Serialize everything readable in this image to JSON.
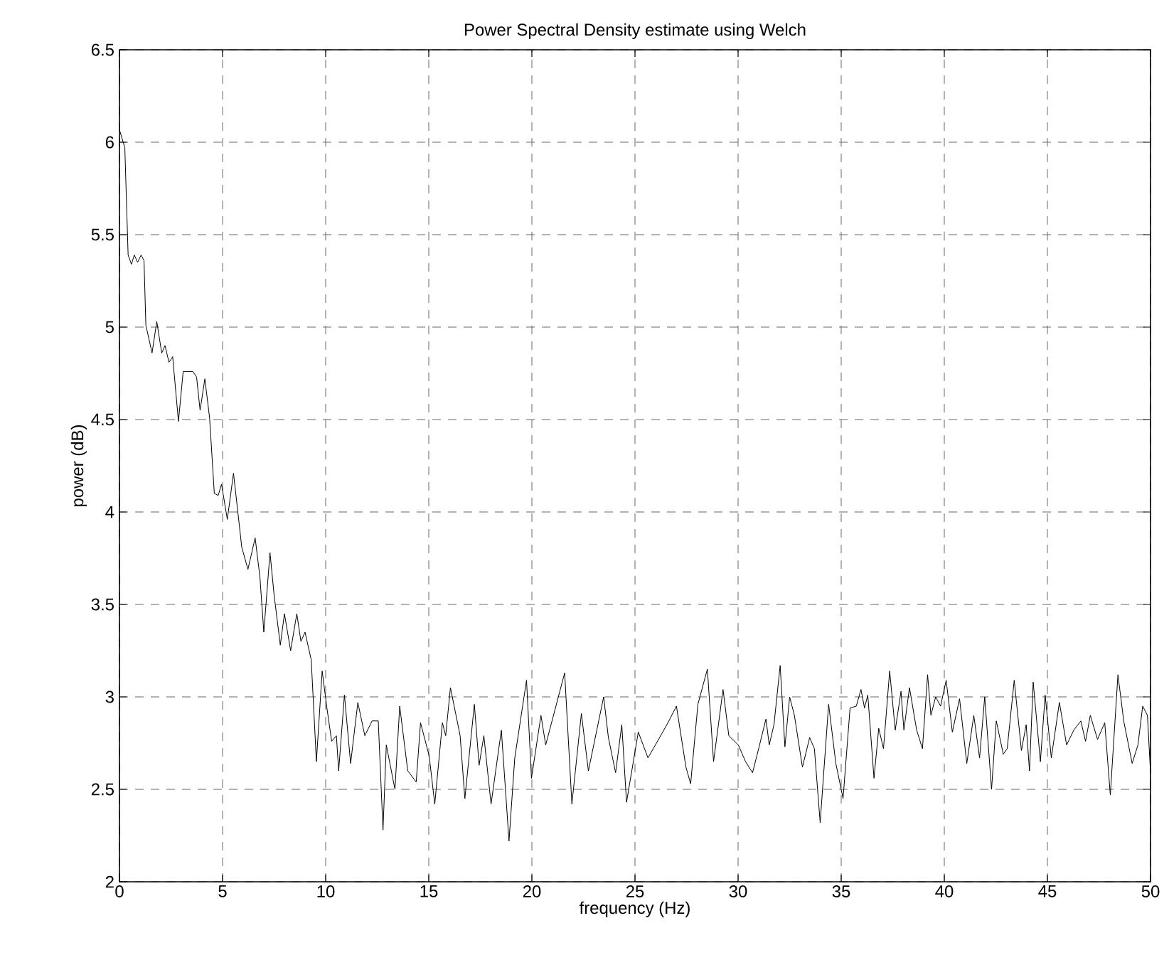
{
  "chart_data": {
    "type": "line",
    "title": "Power Spectral Density estimate using Welch",
    "xlabel": "frequency (Hz)",
    "ylabel": "power (dB)",
    "color": "#000000",
    "grid": true,
    "xlim": [
      0,
      50
    ],
    "ylim": [
      2,
      6.5
    ],
    "xticks": [
      0,
      5,
      10,
      15,
      20,
      25,
      30,
      35,
      40,
      45,
      50
    ],
    "yticks": [
      2,
      2.5,
      3,
      3.5,
      4,
      4.5,
      5,
      5.5,
      6,
      6.5
    ],
    "x": [
      0.02,
      0.26,
      0.42,
      0.58,
      0.72,
      0.88,
      1.05,
      1.19,
      1.28,
      1.58,
      1.81,
      2.05,
      2.21,
      2.4,
      2.58,
      2.86,
      3.09,
      3.56,
      3.74,
      3.91,
      4.14,
      4.37,
      4.6,
      4.79,
      4.95,
      5.23,
      5.53,
      5.93,
      6.23,
      6.58,
      6.81,
      7.0,
      7.3,
      7.5,
      7.8,
      8.0,
      8.3,
      8.6,
      8.8,
      9.0,
      9.3,
      9.55,
      9.83,
      10.06,
      10.29,
      10.52,
      10.63,
      10.91,
      11.21,
      11.56,
      11.9,
      12.25,
      12.55,
      12.78,
      12.94,
      13.36,
      13.59,
      13.98,
      14.39,
      14.6,
      15.02,
      15.29,
      15.66,
      15.82,
      16.05,
      16.52,
      16.75,
      17.21,
      17.44,
      17.67,
      18.02,
      18.52,
      18.89,
      19.17,
      19.74,
      19.98,
      20.44,
      20.67,
      21.59,
      21.94,
      22.4,
      22.74,
      23.48,
      23.71,
      24.06,
      24.36,
      24.59,
      25.16,
      25.63,
      26.55,
      27.01,
      27.47,
      27.7,
      28.05,
      28.51,
      28.81,
      29.27,
      29.55,
      30.01,
      30.36,
      30.7,
      30.93,
      31.35,
      31.51,
      31.74,
      32.04,
      32.27,
      32.5,
      32.73,
      33.12,
      33.47,
      33.7,
      33.98,
      34.39,
      34.74,
      35.09,
      35.43,
      35.73,
      35.96,
      36.13,
      36.29,
      36.59,
      36.82,
      37.05,
      37.35,
      37.62,
      37.9,
      38.04,
      38.31,
      38.66,
      38.94,
      39.19,
      39.35,
      39.58,
      39.82,
      40.09,
      40.39,
      40.74,
      41.09,
      41.43,
      41.71,
      41.96,
      42.29,
      42.52,
      42.86,
      43.05,
      43.39,
      43.74,
      43.97,
      44.13,
      44.31,
      44.66,
      44.89,
      45.19,
      45.58,
      45.93,
      46.28,
      46.62,
      46.85,
      47.08,
      47.43,
      47.78,
      48.05,
      48.42,
      48.7,
      49.11,
      49.39,
      49.62,
      49.85,
      50
    ],
    "values": [
      6.06,
      5.97,
      5.39,
      5.34,
      5.39,
      5.35,
      5.39,
      5.36,
      5.01,
      4.86,
      5.03,
      4.86,
      4.9,
      4.81,
      4.84,
      4.49,
      4.76,
      4.76,
      4.73,
      4.55,
      4.72,
      4.51,
      4.1,
      4.09,
      4.15,
      3.96,
      4.21,
      3.81,
      3.69,
      3.86,
      3.65,
      3.35,
      3.78,
      3.55,
      3.28,
      3.45,
      3.25,
      3.45,
      3.3,
      3.35,
      3.2,
      2.65,
      3.14,
      2.94,
      2.76,
      2.79,
      2.6,
      3.01,
      2.64,
      2.97,
      2.79,
      2.87,
      2.87,
      2.28,
      2.74,
      2.5,
      2.95,
      2.6,
      2.54,
      2.86,
      2.68,
      2.42,
      2.86,
      2.79,
      3.05,
      2.79,
      2.45,
      2.96,
      2.63,
      2.79,
      2.42,
      2.82,
      2.22,
      2.67,
      3.09,
      2.56,
      2.9,
      2.74,
      3.13,
      2.42,
      2.91,
      2.6,
      3.0,
      2.78,
      2.59,
      2.85,
      2.43,
      2.81,
      2.67,
      2.85,
      2.95,
      2.62,
      2.53,
      2.96,
      3.15,
      2.65,
      3.04,
      2.79,
      2.74,
      2.65,
      2.59,
      2.69,
      2.88,
      2.74,
      2.85,
      3.17,
      2.73,
      3.0,
      2.9,
      2.62,
      2.78,
      2.72,
      2.32,
      2.96,
      2.64,
      2.45,
      2.94,
      2.95,
      3.04,
      2.94,
      3.01,
      2.56,
      2.83,
      2.72,
      3.14,
      2.82,
      3.03,
      2.82,
      3.05,
      2.82,
      2.72,
      3.12,
      2.9,
      3.0,
      2.95,
      3.09,
      2.81,
      2.99,
      2.64,
      2.9,
      2.67,
      3.0,
      2.5,
      2.87,
      2.69,
      2.72,
      3.09,
      2.71,
      2.85,
      2.6,
      3.08,
      2.65,
      3.01,
      2.67,
      2.97,
      2.74,
      2.82,
      2.87,
      2.76,
      2.9,
      2.77,
      2.86,
      2.47,
      3.12,
      2.87,
      2.64,
      2.74,
      2.95,
      2.9,
      2.59
    ]
  }
}
